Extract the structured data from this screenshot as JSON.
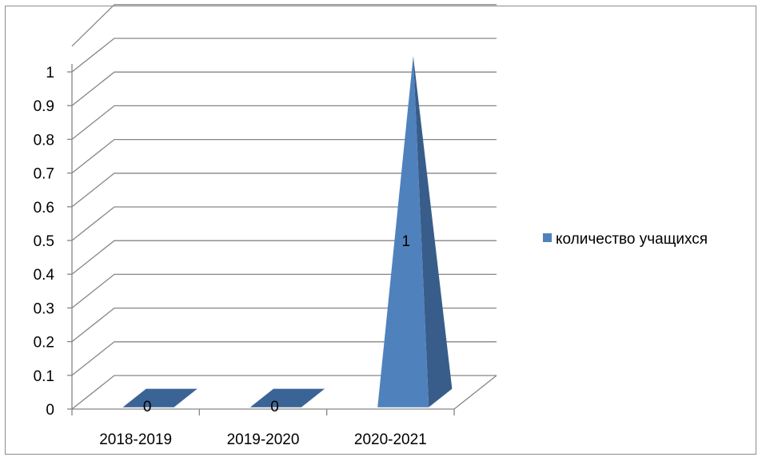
{
  "chart_data": {
    "type": "bar",
    "shape": "3d-pyramid",
    "title": "",
    "xlabel": "",
    "ylabel": "",
    "categories": [
      "2018-2019",
      "2019-2020",
      "2020-2021"
    ],
    "series": [
      {
        "name": "количество учащихся",
        "values": [
          0,
          0,
          1
        ],
        "color": "#4f81bd"
      }
    ],
    "data_labels": [
      "0",
      "0",
      "1"
    ],
    "ylim": [
      0,
      1
    ],
    "yticks": [
      "0",
      "0.1",
      "0.2",
      "0.3",
      "0.4",
      "0.5",
      "0.6",
      "0.7",
      "0.8",
      "0.9",
      "1"
    ],
    "grid": true,
    "legend_position": "right"
  },
  "colors": {
    "gridline": "#868686",
    "series_face": "#4f81bd",
    "series_side": "#385d8a",
    "series_flat": "#3b6496"
  }
}
